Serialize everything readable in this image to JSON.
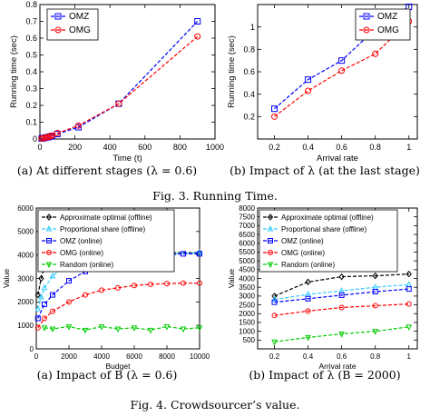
{
  "captions": {
    "fig3a": "(a)  At different stages (λ = 0.6)",
    "fig3b": "(b)  Impact of λ (at the last stage)",
    "fig3": "Fig. 3.    Running Time.",
    "fig4a": "(a)  Impact of B (λ = 0.6)",
    "fig4b": "(b)  Impact of λ (B = 2000)",
    "fig4": "Fig. 4.    Crowdsourcer’s value."
  },
  "colors": {
    "approx": "#000000",
    "proportional": "#33ccff",
    "omz": "#0000ff",
    "omg": "#ff0000",
    "random": "#00cc00"
  },
  "chart_data": [
    {
      "id": "fig3a",
      "type": "line",
      "xlabel": "Time (t)",
      "ylabel": "Running time (sec)",
      "xlim": [
        0,
        1000
      ],
      "ylim": [
        0,
        0.8
      ],
      "xticks": [
        0,
        200,
        400,
        600,
        800,
        1000
      ],
      "yticks": [
        0,
        0.1,
        0.2,
        0.3,
        0.4,
        0.5,
        0.6,
        0.7,
        0.8
      ],
      "xtick_labels": [
        "0",
        "200",
        "400",
        "600",
        "800",
        "1000"
      ],
      "ytick_labels": [
        "0",
        "0.1",
        "0.2",
        "0.3",
        "0.4",
        "0.5",
        "0.6",
        "0.7",
        "0.8"
      ],
      "legend_position": "top-left",
      "series": [
        {
          "name": "OMZ",
          "color": "#0000ff",
          "marker": "square",
          "x": [
            10,
            20,
            30,
            40,
            50,
            60,
            70,
            100,
            220,
            450,
            900
          ],
          "y": [
            0.003,
            0.005,
            0.008,
            0.01,
            0.012,
            0.015,
            0.018,
            0.03,
            0.07,
            0.21,
            0.7
          ]
        },
        {
          "name": "OMG",
          "color": "#ff0000",
          "marker": "circle",
          "x": [
            10,
            20,
            30,
            40,
            50,
            60,
            70,
            100,
            220,
            450,
            900
          ],
          "y": [
            0.003,
            0.005,
            0.008,
            0.011,
            0.013,
            0.016,
            0.02,
            0.035,
            0.08,
            0.21,
            0.61
          ]
        }
      ]
    },
    {
      "id": "fig3b",
      "type": "line",
      "xlabel": "Arrival rate",
      "ylabel": "Running time (sec)",
      "xlim": [
        0.1,
        1.05
      ],
      "ylim": [
        0,
        1.2
      ],
      "xticks": [
        0.2,
        0.4,
        0.6,
        0.8,
        1
      ],
      "yticks": [
        0.2,
        0.4,
        0.6,
        0.8,
        1
      ],
      "xtick_labels": [
        "0.2",
        "0.4",
        "0.6",
        "0.8",
        "1"
      ],
      "ytick_labels": [
        "0.2",
        "0.4",
        "0.6",
        "0.8",
        "1"
      ],
      "legend_position": "top-right",
      "series": [
        {
          "name": "OMZ",
          "color": "#0000ff",
          "marker": "square",
          "x": [
            0.2,
            0.4,
            0.6,
            0.8,
            1.0
          ],
          "y": [
            0.27,
            0.53,
            0.7,
            0.98,
            1.18
          ]
        },
        {
          "name": "OMG",
          "color": "#ff0000",
          "marker": "circle",
          "x": [
            0.2,
            0.4,
            0.6,
            0.8,
            1.0
          ],
          "y": [
            0.2,
            0.43,
            0.61,
            0.76,
            1.05
          ]
        }
      ]
    },
    {
      "id": "fig4a",
      "type": "line",
      "xlabel": "Budget",
      "ylabel": "Value",
      "xlim": [
        0,
        10000
      ],
      "ylim": [
        0,
        6000
      ],
      "xticks": [
        0,
        2000,
        4000,
        6000,
        8000,
        10000
      ],
      "yticks": [
        0,
        1000,
        2000,
        3000,
        4000,
        5000,
        6000
      ],
      "xtick_labels": [
        "0",
        "2000",
        "4000",
        "6000",
        "8000",
        "10000"
      ],
      "ytick_labels": [
        "0",
        "1000",
        "2000",
        "3000",
        "4000",
        "5000",
        "6000"
      ],
      "legend_position": "top-left",
      "series": [
        {
          "name": "Approximate optimal (offline)",
          "color": "#000000",
          "marker": "diamond",
          "x": [
            100,
            300,
            500,
            700,
            1000,
            1300,
            1600,
            2000,
            3000,
            4000,
            6000,
            8000,
            10000
          ],
          "y": [
            2300,
            3000,
            3500,
            3800,
            4000,
            4050,
            4080,
            4100,
            4100,
            4100,
            4100,
            4100,
            4100
          ]
        },
        {
          "name": "Proportional share (offline)",
          "color": "#33ccff",
          "marker": "triangle-up",
          "x": [
            100,
            300,
            500,
            1000,
            1500,
            2000,
            3000,
            4000,
            5000,
            6000,
            8000,
            10000
          ],
          "y": [
            1700,
            2200,
            2600,
            3100,
            3400,
            3600,
            3800,
            3900,
            3950,
            4000,
            4050,
            4100
          ]
        },
        {
          "name": "OMZ (online)",
          "color": "#0000ff",
          "marker": "square",
          "x": [
            100,
            500,
            1000,
            2000,
            3000,
            4000,
            5000,
            6000,
            7000,
            8000,
            9000,
            10000
          ],
          "y": [
            1300,
            1900,
            2300,
            2900,
            3300,
            3550,
            3750,
            3900,
            3970,
            4000,
            4050,
            4050
          ]
        },
        {
          "name": "OMG (online)",
          "color": "#ff0000",
          "marker": "circle",
          "x": [
            100,
            500,
            1000,
            2000,
            3000,
            4000,
            5000,
            6000,
            7000,
            8000,
            9000,
            10000
          ],
          "y": [
            900,
            1300,
            1600,
            2000,
            2300,
            2500,
            2600,
            2700,
            2750,
            2780,
            2800,
            2800
          ]
        },
        {
          "name": "Random (online)",
          "color": "#00cc00",
          "marker": "triangle-down",
          "x": [
            500,
            1000,
            2000,
            3000,
            4000,
            5000,
            6000,
            7000,
            8000,
            9000,
            10000
          ],
          "y": [
            900,
            850,
            950,
            800,
            950,
            850,
            900,
            800,
            950,
            850,
            900
          ]
        }
      ]
    },
    {
      "id": "fig4b",
      "type": "line",
      "xlabel": "Arrival rate",
      "ylabel": "Value",
      "xlim": [
        0.1,
        1.05
      ],
      "ylim": [
        0,
        8000
      ],
      "xticks": [
        0.2,
        0.4,
        0.6,
        0.8,
        1
      ],
      "yticks": [
        0,
        500,
        1000,
        1500,
        2000,
        2500,
        3000,
        3500,
        4000,
        4500,
        5000,
        5500,
        6000,
        6500,
        7000,
        7500,
        8000
      ],
      "xtick_labels": [
        "0.2",
        "0.4",
        "0.6",
        "0.8",
        "1"
      ],
      "ytick_labels": [
        "",
        "500",
        "1000",
        "1500",
        "2000",
        "2500",
        "3000",
        "3500",
        "4000",
        "4500",
        "5000",
        "5500",
        "6000",
        "6500",
        "7000",
        "7500",
        "8000"
      ],
      "legend_position": "top-left",
      "series": [
        {
          "name": "Approximate optimal (offline)",
          "color": "#000000",
          "marker": "diamond",
          "x": [
            0.2,
            0.4,
            0.6,
            0.8,
            1.0
          ],
          "y": [
            3000,
            3800,
            4100,
            4150,
            4250
          ]
        },
        {
          "name": "Proportional share (offline)",
          "color": "#33ccff",
          "marker": "triangle-up",
          "x": [
            0.2,
            0.4,
            0.6,
            0.8,
            1.0
          ],
          "y": [
            2800,
            3100,
            3300,
            3500,
            3650
          ]
        },
        {
          "name": "OMZ (online)",
          "color": "#0000ff",
          "marker": "square",
          "x": [
            0.2,
            0.4,
            0.6,
            0.8,
            1.0
          ],
          "y": [
            2650,
            2850,
            3050,
            3250,
            3400
          ]
        },
        {
          "name": "OMG (online)",
          "color": "#ff0000",
          "marker": "circle",
          "x": [
            0.2,
            0.4,
            0.6,
            0.8,
            1.0
          ],
          "y": [
            1900,
            2150,
            2350,
            2450,
            2550
          ]
        },
        {
          "name": "Random (online)",
          "color": "#00cc00",
          "marker": "triangle-down",
          "x": [
            0.2,
            0.4,
            0.6,
            0.8,
            1.0
          ],
          "y": [
            400,
            650,
            850,
            1000,
            1250
          ]
        }
      ]
    }
  ]
}
